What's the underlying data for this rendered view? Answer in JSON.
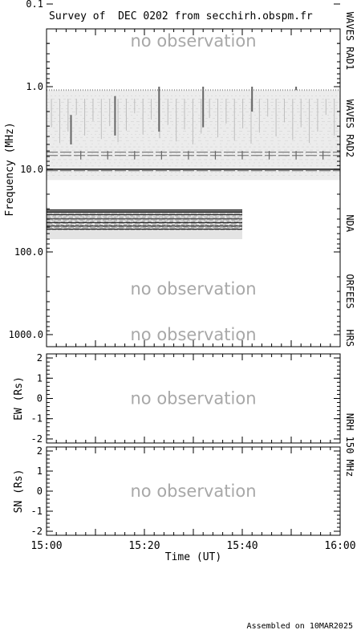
{
  "title": "Survey of  DEC 0202 from secchirh.obspm.fr",
  "footer": "Assembled on 10MAR2025",
  "no_observation_label": "no observation",
  "colors": {
    "no_observation": "#a8a8a8",
    "background": "#ffffff",
    "waves_fill": "#ececec",
    "nda_fill": "#e4e4e4",
    "emission_dark": "#222222",
    "emission_mid": "#666666"
  },
  "chart_data": [
    {
      "type": "heatmap",
      "name": "spectrogram",
      "ylabel": "Frequency (MHz)",
      "yscale": "log",
      "ylim": [
        0.2,
        1400
      ],
      "y_inverted": true,
      "yticks": [
        {
          "value": 0.1,
          "label": "0.1"
        },
        {
          "value": 1.0,
          "label": "1.0"
        },
        {
          "value": 10.0,
          "label": "10.0"
        },
        {
          "value": 100.0,
          "label": "100.0"
        },
        {
          "value": 1000.0,
          "label": "1000.0"
        }
      ],
      "instruments": [
        "WAVES RAD1",
        "WAVES RAD2",
        "NDA",
        "ORFEES",
        "HRS"
      ],
      "no_observation_bands": [
        "WAVES RAD1",
        "ORFEES",
        "HRS"
      ],
      "observed": [
        {
          "instrument": "WAVES RAD2",
          "freq_MHz": [
            1.1,
            13.5
          ],
          "time": [
            "15:00",
            "16:00"
          ]
        },
        {
          "instrument": "NDA",
          "freq_MHz": [
            30.5,
            70.0
          ],
          "time": [
            "15:00",
            "15:40"
          ]
        }
      ],
      "bursts": [
        {
          "time": "15:05",
          "freq_MHz": [
            2.2,
            5.0
          ]
        },
        {
          "time": "15:14",
          "freq_MHz": [
            1.3,
            3.9
          ]
        },
        {
          "time": "15:23",
          "freq_MHz": [
            1.0,
            3.5
          ]
        },
        {
          "time": "15:32",
          "freq_MHz": [
            1.0,
            3.1
          ]
        },
        {
          "time": "15:42",
          "freq_MHz": [
            1.0,
            2.0
          ]
        },
        {
          "time": "15:51",
          "freq_MHz": [
            1.0,
            1.1
          ]
        }
      ],
      "horizontal_lines_MHz": [
        6.2,
        6.8,
        10.0,
        10.4
      ]
    },
    {
      "type": "heatmap",
      "name": "nrh-ew",
      "ylabel": "EW (Rs)",
      "ylim": [
        -2.2,
        2.2
      ],
      "yticks": [
        2,
        1,
        0,
        -1,
        -2
      ],
      "status": "no observation"
    },
    {
      "type": "heatmap",
      "name": "nrh-sn",
      "ylabel": "SN (Rs)",
      "ylim": [
        -2.2,
        2.2
      ],
      "yticks": [
        2,
        1,
        0,
        -1,
        -2
      ],
      "status": "no observation"
    }
  ],
  "nrh_label": "NRH 150 MHz",
  "x_axis": {
    "label": "Time (UT)",
    "start": "15:00",
    "end": "16:00",
    "ticks": [
      "15:00",
      "15:20",
      "15:40",
      "16:00"
    ],
    "minor_step_min": 2
  }
}
